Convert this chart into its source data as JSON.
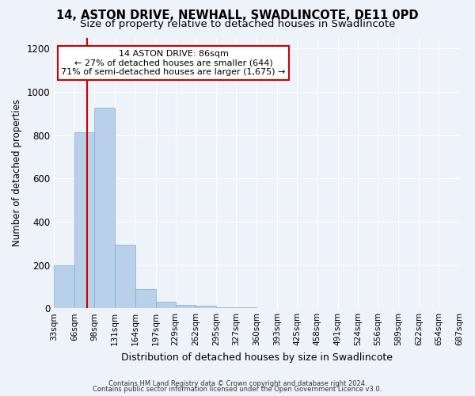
{
  "title": "14, ASTON DRIVE, NEWHALL, SWADLINCOTE, DE11 0PD",
  "subtitle": "Size of property relative to detached houses in Swadlincote",
  "xlabel": "Distribution of detached houses by size in Swadlincote",
  "ylabel": "Number of detached properties",
  "footnote1": "Contains HM Land Registry data © Crown copyright and database right 2024.",
  "footnote2": "Contains public sector information licensed under the Open Government Licence v3.0.",
  "bins": [
    33,
    66,
    98,
    131,
    164,
    197,
    229,
    262,
    295,
    327,
    360,
    393,
    425,
    458,
    491,
    524,
    556,
    589,
    622,
    654,
    687
  ],
  "bar_heights": [
    197,
    813,
    928,
    295,
    90,
    30,
    17,
    10,
    5,
    3,
    2,
    0,
    0,
    0,
    0,
    0,
    0,
    0,
    0,
    0
  ],
  "bar_color": "#b8d0ea",
  "bar_edge_color": "#7aafd4",
  "property_size": 86,
  "property_line_color": "#cc0000",
  "annotation_text": "14 ASTON DRIVE: 86sqm\n← 27% of detached houses are smaller (644)\n71% of semi-detached houses are larger (1,675) →",
  "annotation_box_color": "#ffffff",
  "annotation_box_edge": "#cc0000",
  "ylim": [
    0,
    1250
  ],
  "yticks": [
    0,
    200,
    400,
    600,
    800,
    1000,
    1200
  ],
  "bg_color": "#eef2f9",
  "plot_bg_color": "#eef2f9",
  "title_fontsize": 10.5,
  "subtitle_fontsize": 9.5,
  "ylabel_fontsize": 8.5,
  "xlabel_fontsize": 9,
  "tick_label_fontsize": 7.5,
  "annotation_fontsize": 8,
  "footnote_fontsize": 6
}
